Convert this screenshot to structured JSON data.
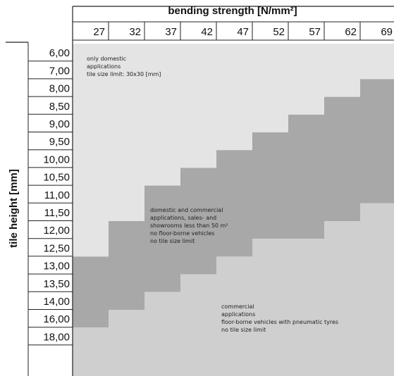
{
  "chart_data": {
    "type": "heatmap",
    "x_title": "bending strength [N/mm²]",
    "y_title": "tile height [mm]",
    "x_categories": [
      "27",
      "32",
      "37",
      "42",
      "47",
      "52",
      "57",
      "62",
      "69"
    ],
    "y_categories": [
      "6,00",
      "7,00",
      "8,00",
      "8,50",
      "9,00",
      "9,50",
      "10,00",
      "10,50",
      "11,00",
      "11,50",
      "12,00",
      "12,50",
      "13,00",
      "13,50",
      "14,00",
      "16,00",
      "18,00"
    ],
    "zones": [
      {
        "id": "domestic",
        "color": "#e4e4e4",
        "label_lines": [
          "only domestic",
          "applications",
          "tile size limit: 30x30 [mm]"
        ]
      },
      {
        "id": "domestic-commercial",
        "color": "#a8a8a8",
        "label_lines": [
          "domestic and commercial",
          "applications, sales- and",
          "showrooms less than 50 m²",
          "no floor-borne vehicles",
          "no tile size limit"
        ]
      },
      {
        "id": "commercial",
        "color": "#cfcfcf",
        "label_lines": [
          "commercial",
          "applications",
          "floor-borne vehicles with pneumatic tyres",
          "no tile size limit"
        ]
      }
    ],
    "zone_boundaries": {
      "domestic_commercial_start_row": [
        12,
        10,
        8,
        7,
        6,
        5,
        4,
        3,
        2
      ],
      "commercial_start_row": [
        16,
        15,
        14,
        13,
        12,
        11,
        11,
        10,
        9
      ]
    },
    "grid": true
  }
}
